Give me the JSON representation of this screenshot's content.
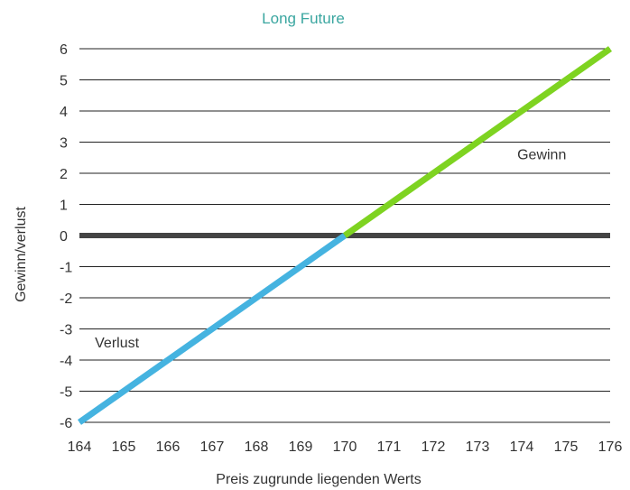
{
  "chart_data": {
    "type": "line",
    "title": "Long Future",
    "xlabel": "Preis zugrunde liegenden Werts",
    "ylabel": "Gewinn/verlust",
    "xlim": [
      164,
      176
    ],
    "ylim": [
      -6,
      6
    ],
    "x_ticks": [
      164,
      165,
      166,
      167,
      168,
      169,
      170,
      171,
      172,
      173,
      174,
      175,
      176
    ],
    "y_ticks": [
      6,
      5,
      4,
      3,
      2,
      1,
      0,
      -1,
      -2,
      -3,
      -4,
      -5,
      -6
    ],
    "grid": true,
    "series": [
      {
        "segment": "loss",
        "color": "#45b3e0",
        "x": [
          164,
          170
        ],
        "y": [
          -6,
          0
        ]
      },
      {
        "segment": "gain",
        "color": "#7ed321",
        "x": [
          170,
          176
        ],
        "y": [
          0,
          6
        ]
      }
    ],
    "zero_line_color": "#444444",
    "annotations": [
      {
        "text": "Gewinn",
        "x": 173.9,
        "y": 2.45
      },
      {
        "text": "Verlust",
        "x": 164.35,
        "y": -3.6
      }
    ]
  }
}
